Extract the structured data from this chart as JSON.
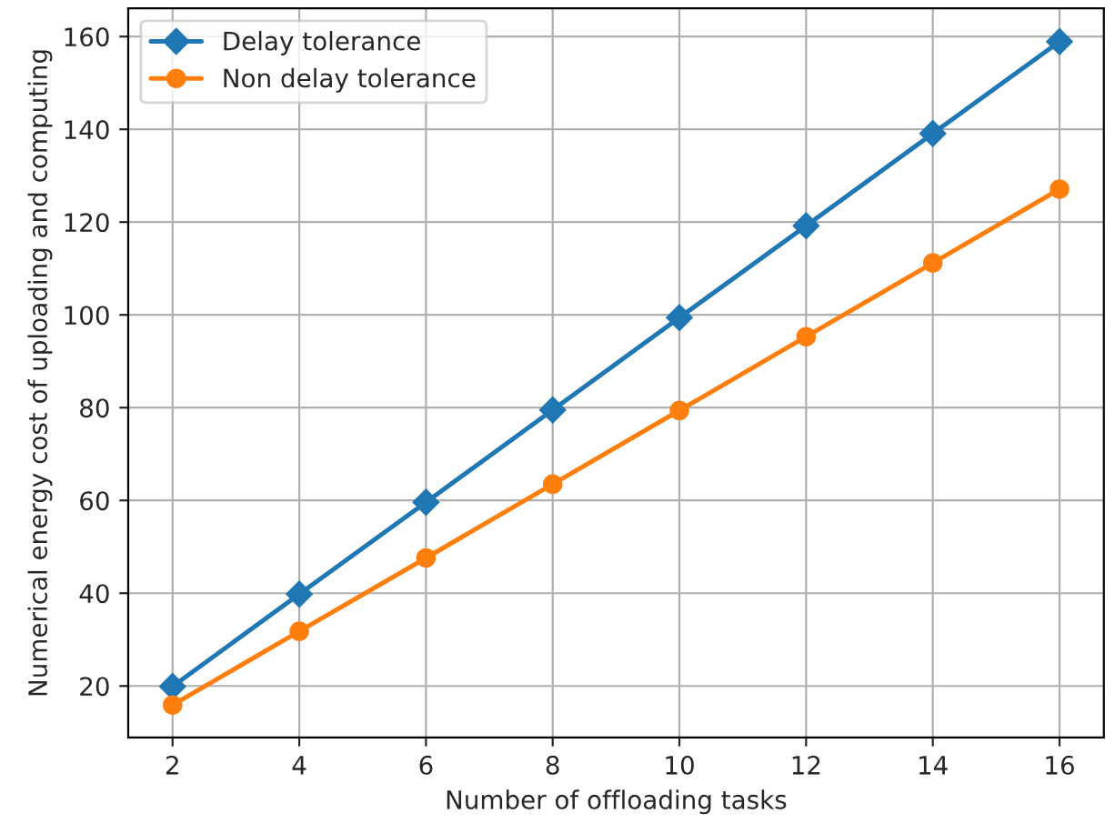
{
  "chart_data": {
    "type": "line",
    "xlabel": "Number of offloading tasks",
    "ylabel": "Numerical energy cost of uploading and computing",
    "x": [
      2,
      4,
      6,
      8,
      10,
      12,
      14,
      16
    ],
    "series": [
      {
        "name": "Delay tolerance",
        "color": "#1f77b4",
        "marker": "diamond",
        "values": [
          19.9,
          39.8,
          59.6,
          79.5,
          99.4,
          119.2,
          139.1,
          158.9
        ]
      },
      {
        "name": "Non delay tolerance",
        "color": "#ff7f0e",
        "marker": "circle",
        "values": [
          15.9,
          31.8,
          47.6,
          63.5,
          79.4,
          95.3,
          111.2,
          127.1
        ]
      }
    ],
    "xlim": [
      1.3,
      16.7
    ],
    "ylim": [
      8.9,
      166.1
    ],
    "xticks": [
      2,
      4,
      6,
      8,
      10,
      12,
      14,
      16
    ],
    "yticks": [
      20,
      40,
      60,
      80,
      100,
      120,
      140,
      160
    ],
    "grid": true,
    "legend": "top left",
    "line_style": "solid"
  }
}
